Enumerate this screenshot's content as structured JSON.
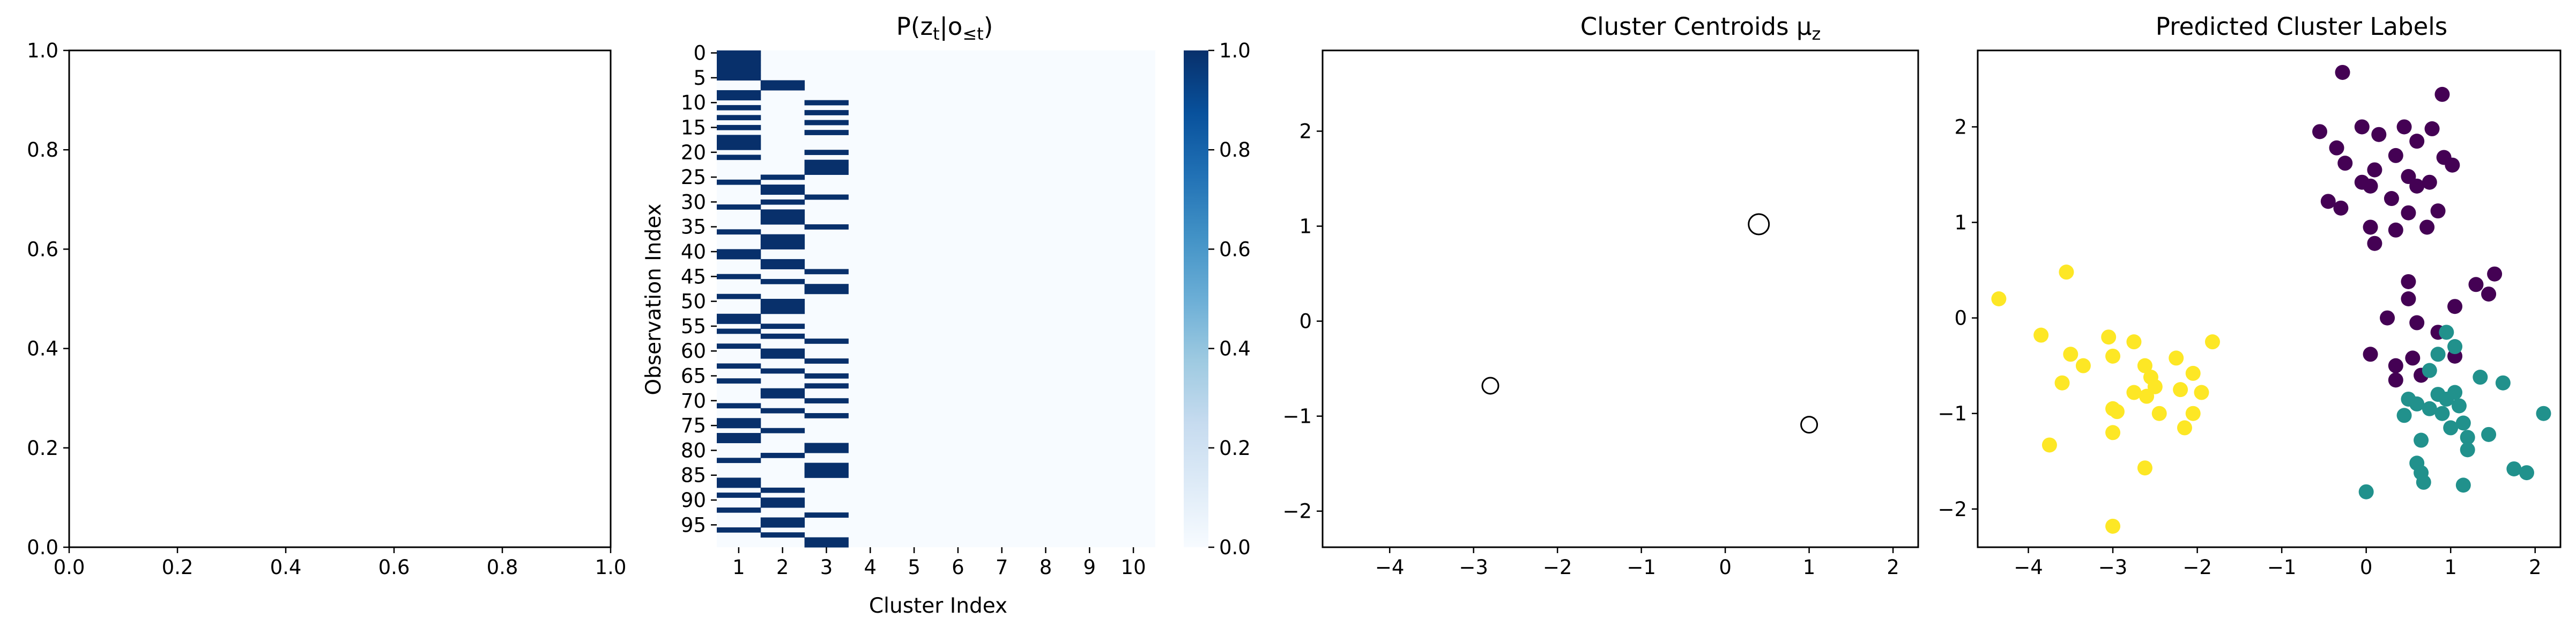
{
  "chart_data": [
    {
      "type": "line",
      "title": "",
      "xlabel": "",
      "ylabel": "",
      "xlim": [
        0,
        1
      ],
      "ylim": [
        0,
        1
      ],
      "xticks": [
        "0.0",
        "0.2",
        "0.4",
        "0.6",
        "0.8",
        "1.0"
      ],
      "yticks": [
        "0.0",
        "0.2",
        "0.4",
        "0.6",
        "0.8",
        "1.0"
      ],
      "series": []
    },
    {
      "type": "heatmap",
      "title": "P(z_t|o_≤t)",
      "title_parts": {
        "base": "P(z",
        "sub1": "t",
        "mid": "|o",
        "sub2": "≤t",
        "end": ")"
      },
      "xlabel": "Cluster Index",
      "ylabel": "Observation Index",
      "colormap": "Blues",
      "colorbar_ticks": [
        "0.0",
        "0.2",
        "0.4",
        "0.6",
        "0.8",
        "1.0"
      ],
      "colorbar_range": [
        0,
        1
      ],
      "low_color": "#f7fbff",
      "high_color": "#08306b",
      "clusters": [
        "1",
        "2",
        "3",
        "4",
        "5",
        "6",
        "7",
        "8",
        "9",
        "10"
      ],
      "observation_ticks": [
        "0",
        "5",
        "10",
        "15",
        "20",
        "25",
        "30",
        "35",
        "40",
        "45",
        "50",
        "55",
        "60",
        "65",
        "70",
        "75",
        "80",
        "85",
        "90",
        "95"
      ],
      "num_observations": 100,
      "assignment": [
        1,
        1,
        1,
        1,
        1,
        1,
        2,
        2,
        1,
        1,
        3,
        1,
        3,
        1,
        3,
        1,
        3,
        1,
        1,
        1,
        3,
        1,
        3,
        3,
        3,
        2,
        1,
        2,
        2,
        3,
        2,
        1,
        2,
        2,
        2,
        3,
        1,
        2,
        2,
        2,
        1,
        1,
        2,
        2,
        3,
        1,
        2,
        3,
        3,
        1,
        2,
        2,
        2,
        1,
        1,
        2,
        1,
        2,
        3,
        1,
        2,
        2,
        3,
        1,
        2,
        3,
        1,
        3,
        2,
        2,
        3,
        1,
        2,
        3,
        1,
        1,
        2,
        1,
        1,
        3,
        3,
        2,
        1,
        3,
        3,
        3,
        1,
        1,
        2,
        1,
        2,
        2,
        1,
        3,
        2,
        2,
        1,
        2,
        3,
        3
      ]
    },
    {
      "type": "scatter",
      "title": "Cluster Centroids μ_z",
      "title_parts": {
        "base": "Cluster Centroids μ",
        "sub": "z"
      },
      "xlabel": "",
      "ylabel": "",
      "xlim": [
        -4.8,
        2.3
      ],
      "ylim": [
        -2.38,
        2.85
      ],
      "xticks": [
        "−4",
        "−3",
        "−2",
        "−1",
        "0",
        "1",
        "2"
      ],
      "yticks": [
        "−2",
        "−1",
        "0",
        "1",
        "2"
      ],
      "marker": "hollow circle, size proportional to cluster weight",
      "points": [
        {
          "x": 0.4,
          "y": 1.02,
          "r": 19
        },
        {
          "x": -2.8,
          "y": -0.68,
          "r": 15
        },
        {
          "x": 1.0,
          "y": -1.09,
          "r": 15
        }
      ]
    },
    {
      "type": "scatter",
      "title": "Predicted Cluster Labels",
      "xlabel": "",
      "ylabel": "",
      "xlim": [
        -4.6,
        2.3
      ],
      "ylim": [
        -2.4,
        2.8
      ],
      "xticks": [
        "−4",
        "−3",
        "−2",
        "−1",
        "0",
        "1",
        "2"
      ],
      "yticks": [
        "−2",
        "−1",
        "0",
        "1",
        "2"
      ],
      "colors": {
        "0": "#440154",
        "1": "#21918c",
        "2": "#fde725"
      },
      "points": [
        {
          "x": -0.28,
          "y": 2.57,
          "c": 0
        },
        {
          "x": 0.9,
          "y": 2.34,
          "c": 0
        },
        {
          "x": -0.55,
          "y": 1.95,
          "c": 0
        },
        {
          "x": -0.05,
          "y": 2.0,
          "c": 0
        },
        {
          "x": 0.15,
          "y": 1.92,
          "c": 0
        },
        {
          "x": 0.45,
          "y": 2.0,
          "c": 0
        },
        {
          "x": 0.78,
          "y": 1.98,
          "c": 0
        },
        {
          "x": -0.35,
          "y": 1.78,
          "c": 0
        },
        {
          "x": 0.6,
          "y": 1.85,
          "c": 0
        },
        {
          "x": -0.25,
          "y": 1.62,
          "c": 0
        },
        {
          "x": 0.1,
          "y": 1.55,
          "c": 0
        },
        {
          "x": 0.35,
          "y": 1.7,
          "c": 0
        },
        {
          "x": 0.92,
          "y": 1.68,
          "c": 0
        },
        {
          "x": 1.02,
          "y": 1.6,
          "c": 0
        },
        {
          "x": -0.05,
          "y": 1.42,
          "c": 0
        },
        {
          "x": 0.05,
          "y": 1.38,
          "c": 0
        },
        {
          "x": 0.5,
          "y": 1.48,
          "c": 0
        },
        {
          "x": 0.6,
          "y": 1.38,
          "c": 0
        },
        {
          "x": 0.75,
          "y": 1.42,
          "c": 0
        },
        {
          "x": -0.45,
          "y": 1.22,
          "c": 0
        },
        {
          "x": -0.3,
          "y": 1.15,
          "c": 0
        },
        {
          "x": 0.3,
          "y": 1.25,
          "c": 0
        },
        {
          "x": 0.5,
          "y": 1.1,
          "c": 0
        },
        {
          "x": 0.85,
          "y": 1.12,
          "c": 0
        },
        {
          "x": 0.05,
          "y": 0.95,
          "c": 0
        },
        {
          "x": 0.35,
          "y": 0.92,
          "c": 0
        },
        {
          "x": 0.72,
          "y": 0.95,
          "c": 0
        },
        {
          "x": 0.1,
          "y": 0.78,
          "c": 0
        },
        {
          "x": 0.5,
          "y": 0.38,
          "c": 0
        },
        {
          "x": 0.5,
          "y": 0.2,
          "c": 0
        },
        {
          "x": 1.3,
          "y": 0.35,
          "c": 0
        },
        {
          "x": 1.52,
          "y": 0.46,
          "c": 0
        },
        {
          "x": 1.45,
          "y": 0.25,
          "c": 0
        },
        {
          "x": 1.05,
          "y": 0.12,
          "c": 0
        },
        {
          "x": 0.25,
          "y": 0.0,
          "c": 0
        },
        {
          "x": 0.6,
          "y": -0.05,
          "c": 0
        },
        {
          "x": 0.85,
          "y": -0.15,
          "c": 0
        },
        {
          "x": 0.05,
          "y": -0.38,
          "c": 0
        },
        {
          "x": 0.35,
          "y": -0.5,
          "c": 0
        },
        {
          "x": 0.55,
          "y": -0.42,
          "c": 0
        },
        {
          "x": 1.05,
          "y": -0.4,
          "c": 0
        },
        {
          "x": 0.35,
          "y": -0.65,
          "c": 0
        },
        {
          "x": 0.65,
          "y": -0.6,
          "c": 0
        },
        {
          "x": 0.95,
          "y": -0.15,
          "c": 1
        },
        {
          "x": 1.05,
          "y": -0.3,
          "c": 1
        },
        {
          "x": 0.85,
          "y": -0.38,
          "c": 1
        },
        {
          "x": 0.75,
          "y": -0.55,
          "c": 1
        },
        {
          "x": 1.35,
          "y": -0.62,
          "c": 1
        },
        {
          "x": 1.62,
          "y": -0.68,
          "c": 1
        },
        {
          "x": 2.1,
          "y": -1.0,
          "c": 1
        },
        {
          "x": 0.5,
          "y": -0.85,
          "c": 1
        },
        {
          "x": 0.6,
          "y": -0.9,
          "c": 1
        },
        {
          "x": 0.85,
          "y": -0.8,
          "c": 1
        },
        {
          "x": 0.95,
          "y": -0.85,
          "c": 1
        },
        {
          "x": 1.05,
          "y": -0.78,
          "c": 1
        },
        {
          "x": 0.75,
          "y": -0.95,
          "c": 1
        },
        {
          "x": 0.9,
          "y": -1.0,
          "c": 1
        },
        {
          "x": 1.1,
          "y": -0.92,
          "c": 1
        },
        {
          "x": 0.45,
          "y": -1.02,
          "c": 1
        },
        {
          "x": 1.0,
          "y": -1.15,
          "c": 1
        },
        {
          "x": 1.15,
          "y": -1.1,
          "c": 1
        },
        {
          "x": 0.65,
          "y": -1.28,
          "c": 1
        },
        {
          "x": 1.2,
          "y": -1.25,
          "c": 1
        },
        {
          "x": 1.2,
          "y": -1.38,
          "c": 1
        },
        {
          "x": 0.6,
          "y": -1.52,
          "c": 1
        },
        {
          "x": 1.45,
          "y": -1.22,
          "c": 1
        },
        {
          "x": 1.75,
          "y": -1.58,
          "c": 1
        },
        {
          "x": 1.9,
          "y": -1.62,
          "c": 1
        },
        {
          "x": 0.65,
          "y": -1.62,
          "c": 1
        },
        {
          "x": 0.68,
          "y": -1.72,
          "c": 1
        },
        {
          "x": 1.15,
          "y": -1.75,
          "c": 1
        },
        {
          "x": 0.0,
          "y": -1.82,
          "c": 1
        },
        {
          "x": -4.35,
          "y": 0.2,
          "c": 2
        },
        {
          "x": -3.55,
          "y": 0.48,
          "c": 2
        },
        {
          "x": -3.85,
          "y": -0.18,
          "c": 2
        },
        {
          "x": -3.05,
          "y": -0.2,
          "c": 2
        },
        {
          "x": -2.75,
          "y": -0.25,
          "c": 2
        },
        {
          "x": -3.5,
          "y": -0.38,
          "c": 2
        },
        {
          "x": -3.0,
          "y": -0.4,
          "c": 2
        },
        {
          "x": -3.35,
          "y": -0.5,
          "c": 2
        },
        {
          "x": -2.62,
          "y": -0.5,
          "c": 2
        },
        {
          "x": -2.25,
          "y": -0.42,
          "c": 2
        },
        {
          "x": -1.82,
          "y": -0.25,
          "c": 2
        },
        {
          "x": -2.55,
          "y": -0.62,
          "c": 2
        },
        {
          "x": -2.05,
          "y": -0.58,
          "c": 2
        },
        {
          "x": -2.5,
          "y": -0.72,
          "c": 2
        },
        {
          "x": -2.2,
          "y": -0.75,
          "c": 2
        },
        {
          "x": -1.95,
          "y": -0.78,
          "c": 2
        },
        {
          "x": -3.6,
          "y": -0.68,
          "c": 2
        },
        {
          "x": -2.75,
          "y": -0.78,
          "c": 2
        },
        {
          "x": -2.6,
          "y": -0.82,
          "c": 2
        },
        {
          "x": -3.0,
          "y": -0.95,
          "c": 2
        },
        {
          "x": -2.95,
          "y": -0.98,
          "c": 2
        },
        {
          "x": -2.45,
          "y": -1.0,
          "c": 2
        },
        {
          "x": -2.05,
          "y": -1.0,
          "c": 2
        },
        {
          "x": -2.15,
          "y": -1.15,
          "c": 2
        },
        {
          "x": -3.0,
          "y": -1.2,
          "c": 2
        },
        {
          "x": -3.75,
          "y": -1.33,
          "c": 2
        },
        {
          "x": -2.62,
          "y": -1.57,
          "c": 2
        },
        {
          "x": -3.0,
          "y": -2.18,
          "c": 2
        }
      ]
    }
  ]
}
